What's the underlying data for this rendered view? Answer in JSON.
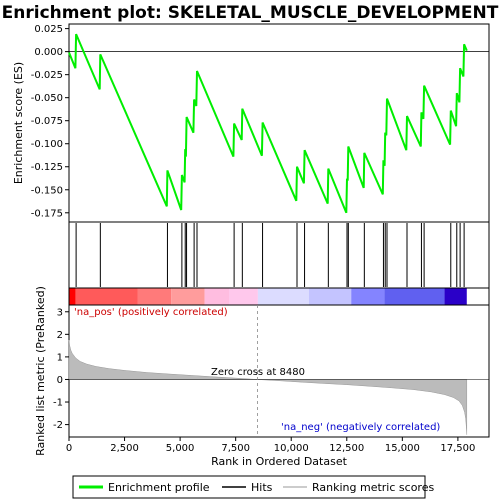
{
  "chart_data": {
    "type": "line",
    "title": "Enrichment plot: SKELETAL_MUSCLE_DEVELOPMENT",
    "es_panel": {
      "ylabel": "Enrichment score (ES)",
      "ylim": [
        -0.185,
        0.03
      ],
      "yticks": [
        0.025,
        0.0,
        -0.025,
        -0.05,
        -0.075,
        -0.1,
        -0.125,
        -0.15,
        -0.175
      ],
      "ytick_labels": [
        "0.025",
        "0.000",
        "-0.025",
        "-0.050",
        "-0.075",
        "-0.100",
        "-0.125",
        "-0.150",
        "-0.175"
      ],
      "line_color": "#00ee00",
      "profile": [
        [
          0,
          -0.001
        ],
        [
          290,
          -0.018
        ],
        [
          320,
          0.019
        ],
        [
          1380,
          -0.041
        ],
        [
          1410,
          -0.003
        ],
        [
          4400,
          -0.168
        ],
        [
          4430,
          -0.129
        ],
        [
          5050,
          -0.172
        ],
        [
          5080,
          -0.134
        ],
        [
          5200,
          -0.142
        ],
        [
          5230,
          -0.106
        ],
        [
          5260,
          -0.114
        ],
        [
          5290,
          -0.071
        ],
        [
          5600,
          -0.088
        ],
        [
          5630,
          -0.052
        ],
        [
          5730,
          -0.059
        ],
        [
          5760,
          -0.021
        ],
        [
          7400,
          -0.114
        ],
        [
          7430,
          -0.078
        ],
        [
          7770,
          -0.096
        ],
        [
          7800,
          -0.062
        ],
        [
          8680,
          -0.113
        ],
        [
          8710,
          -0.077
        ],
        [
          10230,
          -0.162
        ],
        [
          10260,
          -0.125
        ],
        [
          10570,
          -0.143
        ],
        [
          10600,
          -0.107
        ],
        [
          11640,
          -0.165
        ],
        [
          11670,
          -0.127
        ],
        [
          12480,
          -0.175
        ],
        [
          12510,
          -0.138
        ],
        [
          12540,
          -0.14
        ],
        [
          12570,
          -0.103
        ],
        [
          13260,
          -0.148
        ],
        [
          13290,
          -0.11
        ],
        [
          14120,
          -0.155
        ],
        [
          14150,
          -0.118
        ],
        [
          14200,
          -0.124
        ],
        [
          14230,
          -0.088
        ],
        [
          14280,
          -0.091
        ],
        [
          14310,
          -0.051
        ],
        [
          15180,
          -0.107
        ],
        [
          15210,
          -0.07
        ],
        [
          15830,
          -0.103
        ],
        [
          15860,
          -0.066
        ],
        [
          15950,
          -0.073
        ],
        [
          15980,
          -0.037
        ],
        [
          17150,
          -0.101
        ],
        [
          17180,
          -0.064
        ],
        [
          17420,
          -0.081
        ],
        [
          17450,
          -0.045
        ],
        [
          17570,
          -0.055
        ],
        [
          17600,
          -0.018
        ],
        [
          17750,
          -0.027
        ],
        [
          17780,
          0.008
        ],
        [
          17900,
          0.001
        ]
      ]
    },
    "hits_panel": {
      "positions": [
        320,
        1410,
        4430,
        5080,
        5230,
        5290,
        5630,
        5760,
        7430,
        7800,
        8710,
        10260,
        10600,
        11670,
        12510,
        12570,
        13290,
        14150,
        14230,
        14310,
        15210,
        15860,
        15980,
        17180,
        17450,
        17600,
        17780
      ]
    },
    "rank_panel": {
      "ylabel": "Ranked list metric (PreRanked)",
      "xlabel": "Rank in Ordered Dataset",
      "xlim": [
        0,
        18900
      ],
      "ylim": [
        -2.55,
        3.3
      ],
      "yticks": [
        3,
        2,
        1,
        0,
        -1,
        -2
      ],
      "xticks": [
        0,
        2500,
        5000,
        7500,
        10000,
        12500,
        15000,
        17500
      ],
      "xtick_labels": [
        "0",
        "2,500",
        "5,000",
        "7,500",
        "10,000",
        "12,500",
        "15,000",
        "17,500"
      ],
      "zero_cross": 8480,
      "zero_cross_label": "Zero cross at 8480",
      "pos_label": "'na_pos' (positively correlated)",
      "neg_label": "'na_neg' (negatively correlated)",
      "n_genes": 17900,
      "metric_curve": [
        [
          0,
          1.75
        ],
        [
          30,
          1.5
        ],
        [
          80,
          1.3
        ],
        [
          150,
          1.15
        ],
        [
          300,
          0.95
        ],
        [
          500,
          0.8
        ],
        [
          800,
          0.68
        ],
        [
          1200,
          0.58
        ],
        [
          1800,
          0.48
        ],
        [
          2500,
          0.4
        ],
        [
          3500,
          0.31
        ],
        [
          4500,
          0.24
        ],
        [
          5500,
          0.18
        ],
        [
          6500,
          0.12
        ],
        [
          7500,
          0.06
        ],
        [
          8480,
          0.0
        ],
        [
          9500,
          -0.06
        ],
        [
          10500,
          -0.12
        ],
        [
          11500,
          -0.18
        ],
        [
          12500,
          -0.23
        ],
        [
          13500,
          -0.3
        ],
        [
          14500,
          -0.37
        ],
        [
          15500,
          -0.45
        ],
        [
          16300,
          -0.55
        ],
        [
          16900,
          -0.67
        ],
        [
          17300,
          -0.8
        ],
        [
          17550,
          -0.95
        ],
        [
          17700,
          -1.15
        ],
        [
          17800,
          -1.45
        ],
        [
          17850,
          -1.75
        ],
        [
          17880,
          -2.1
        ],
        [
          17900,
          -2.45
        ]
      ]
    },
    "colorbar": {
      "segments": [
        [
          0,
          300,
          "#ff0000"
        ],
        [
          300,
          3100,
          "#ff5a5a"
        ],
        [
          3100,
          4600,
          "#ff7a7a"
        ],
        [
          4600,
          6100,
          "#ff9c9c"
        ],
        [
          6100,
          7200,
          "#ffbde0"
        ],
        [
          7200,
          8500,
          "#ffc8ec"
        ],
        [
          8500,
          10800,
          "#dcdcff"
        ],
        [
          10800,
          12700,
          "#c4c4ff"
        ],
        [
          12700,
          14200,
          "#8484ff"
        ],
        [
          14200,
          16900,
          "#6060f0"
        ],
        [
          16900,
          17900,
          "#2a00c8"
        ]
      ]
    },
    "legend": {
      "items": [
        {
          "label": "Enrichment profile",
          "color": "#00ee00"
        },
        {
          "label": "Hits",
          "color": "#000000"
        },
        {
          "label": "Ranking metric scores",
          "color": "#bbbbbb"
        }
      ]
    }
  }
}
